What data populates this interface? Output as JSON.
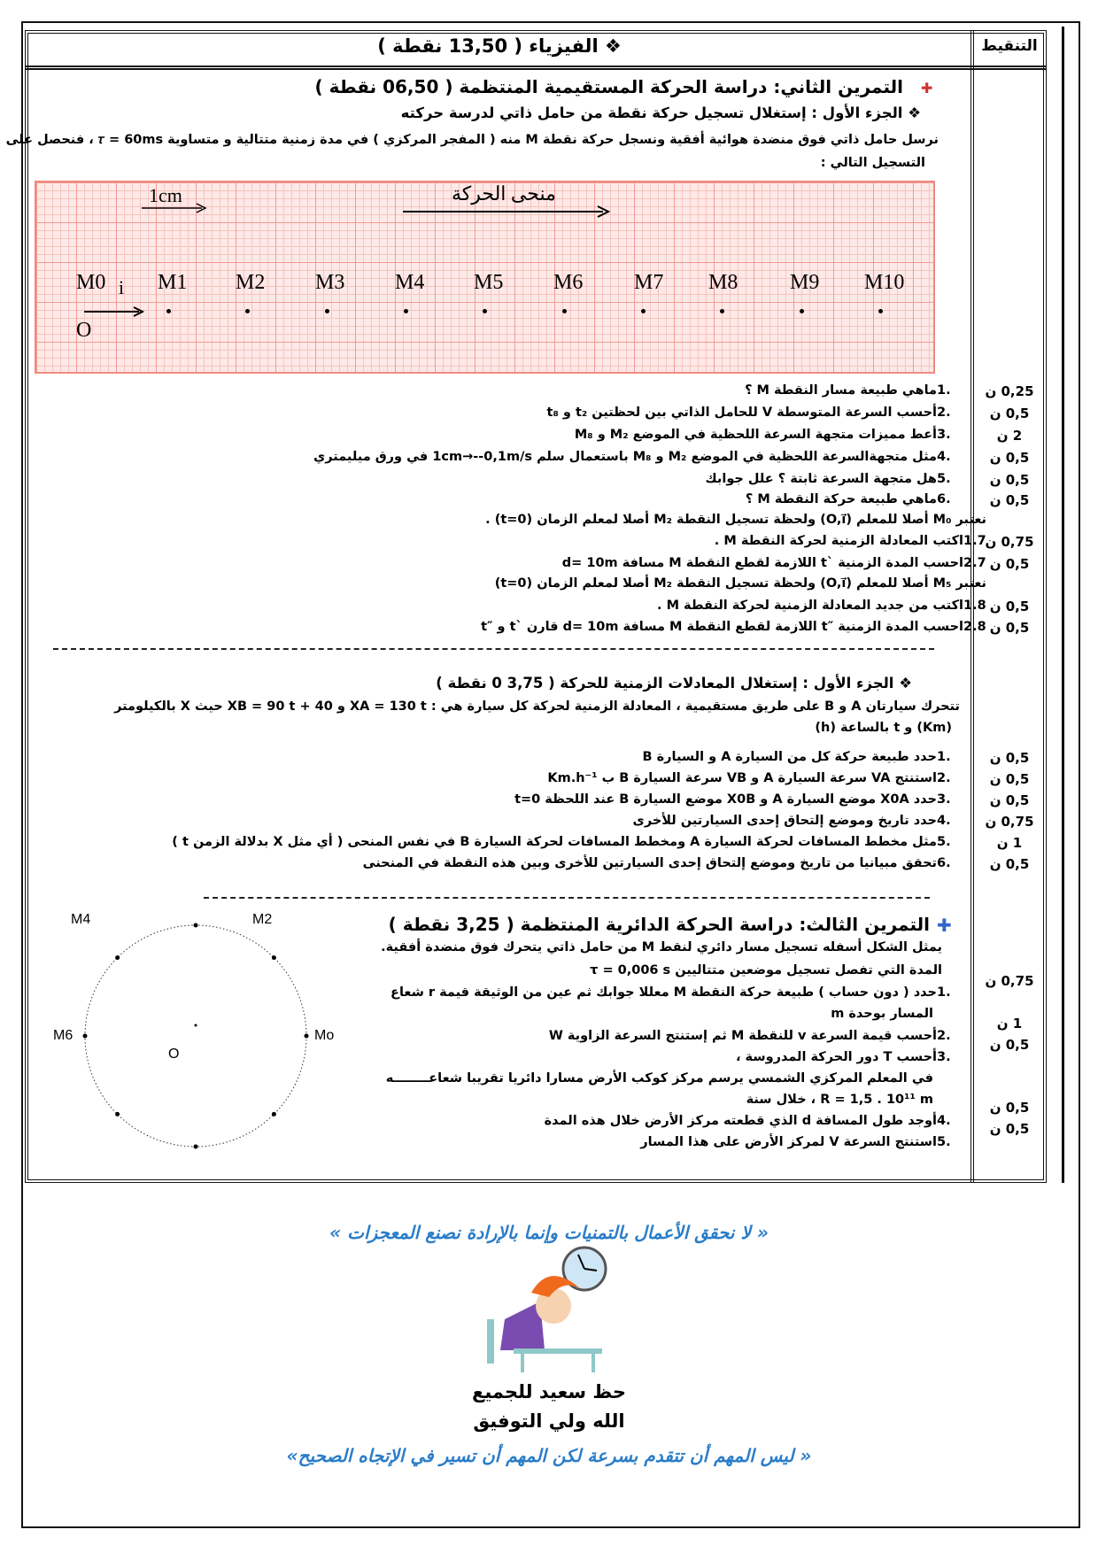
{
  "header": {
    "title": "❖  الفيزياء ( 13,50 نقطة )",
    "score_column": "التنقيط"
  },
  "ex2": {
    "title": "التمرين الثاني: دراسة الحركة المستقيمية المنتظمة  ( 06,50 نقطة )",
    "part1_title": "❖  الجزء الأول : إستغلال تسجيل حركة نقطة من حامل ذاتي لدرسة حركته",
    "intro": [
      "نرسل حامل ذاتي فوق منضدة هوائية أفقية ونسجل حركة نقطة M منه ( المفجر المركزي )  في مدة زمنية متتالية و متساوية 𝜏 = 60ms ، فنحصل على",
      "التسجيل التالي :"
    ],
    "recording": {
      "scale_label": "1cm",
      "trajectory_label": "منحى الحركة",
      "origin_label": "O",
      "unit_vector_label": "i",
      "points": [
        "M0",
        "M1",
        "M2",
        "M3",
        "M4",
        "M5",
        "M6",
        "M7",
        "M8",
        "M9",
        "M10"
      ],
      "grid_color": "#f29a92"
    },
    "lines": [
      {
        "num": "1.",
        "text": "ماهي  طبيعة مسار النقطة M ؟",
        "score": "0,25 ن"
      },
      {
        "num": "2.",
        "text": "أحسب السرعة المتوسطة V للحامل الذاتي بين لحظتين  t₂   و   t₈",
        "score": "0,5 ن"
      },
      {
        "num": "3.",
        "text": "أعط مميزات متجهة السرعة اللحظية  في الموضع M₂ و M₈",
        "score": "2 ن"
      },
      {
        "num": "4.",
        "text": "مثل متجهةالسرعة اللحظية في الموضع M₂ و M₈  باستعمال سلم 1cm→--0,1m/s  في ورق ميليمتري",
        "score": "0,5 ن"
      },
      {
        "num": "5.",
        "text": "هل متجهة السرعة ثابتة ؟ علل جوابك",
        "score": "0,5 ن"
      },
      {
        "num": "6.",
        "text": "ماهي طبيعة حركة النقطة M ؟",
        "score": "0,5 ن"
      },
      {
        "num": "",
        "text": "نعتبر M₀ أصلا للمعلم  (O,i⃗) ولحظة تسجيل النقطة M₂ أصلا لمعلم الزمان (t=0) .",
        "score": ""
      },
      {
        "num": "1.7",
        "text": "اكتب المعادلة الزمنية لحركة النقطة M .",
        "score": "0,75 ن"
      },
      {
        "num": "2.7",
        "text": "احسب المدة الزمنية  `t  اللازمة لقطع النقطة M مسافة  d=  10m",
        "score": "0,5 ن"
      },
      {
        "num": "",
        "text": "نعتبر M₅ أصلا للمعلم  (O,i⃗) ولحظة تسجيل النقطة M₂ أصلا لمعلم الزمان (t=0)",
        "score": ""
      },
      {
        "num": "1.8",
        "text": "اكتب  من جديد المعادلة الزمنية لحركة النقطة M .",
        "score": "0,5 ن"
      },
      {
        "num": "2.8",
        "text": "احسب المدة الزمنية  ″t  اللازمة لقطع النقطة M مسافة  d=  10m  قارن  `t و  ″t",
        "score": "0,5 ن"
      }
    ]
  },
  "part2": {
    "title": "❖  الجزء الأول : إستغلال المعادلات الزمنية للحركة  ( 3,75 0 نقطة )",
    "intro": [
      "تتحرك سيارتان A و B  على طريق مستقيمية ، المعادلة الزمنية لحركة كل سيارة هي  :    XA = 130 t   و     XB = 90 t + 40   حيث  X بالكيلومتر",
      "(Km) و t بالساعة   (h)"
    ],
    "lines": [
      {
        "num": "1.",
        "text": "حدد طبيعة حركة كل من السيارة A و السيارة B",
        "score": "0,5 ن"
      },
      {
        "num": "2.",
        "text": "استنتج  VA  سرعة السيارة A و  VB سرعة السيارة B ب Km.h⁻¹",
        "score": "0,5 ن"
      },
      {
        "num": "3.",
        "text": "حدد   X0A   موضع  السيارة A و  X0B  موضع  السيارة  B عند اللحظة t=0",
        "score": "0,5 ن"
      },
      {
        "num": "4.",
        "text": "حدد تاريخ وموضع إلتحاق إحدى السيارتين للأخرى",
        "score": "0,75 ن"
      },
      {
        "num": "5.",
        "text": "مثل مخطط المسافات لحركة السيارة A ومخطط المسافات لحركة السيارة B  في نفس المنحى ( أي  مثل X بدلالة الزمن   t  )",
        "score": "1 ن"
      },
      {
        "num": "6.",
        "text": "تحقق مبيانيا من تاريخ وموضع إلتحاق إحدى السيارتين للأخرى وبين هذه النقطة في المنحنى",
        "score": "0,5 ن"
      }
    ]
  },
  "ex3": {
    "title": "التمرين الثالث: دراسة الحركة الدائرية المنتظمة (   3,25 نقطة )",
    "circle_labels": {
      "m4": "M4",
      "m2": "M2",
      "m6": "M6",
      "m0": "Mo",
      "center": "O"
    },
    "lines": [
      {
        "num": "",
        "text": "يمثل الشكل أسفله تسجيل مسار دائري لنقط M من حامل ذاتي يتحرك فوق منضدة أفقية.",
        "score": ""
      },
      {
        "num": "",
        "text": "المدة التي تفصل تسجيل موضعين متتاليين  τ  = 0,006 s",
        "score": "0,75 ن"
      },
      {
        "num": "1.",
        "text": "حدد ( دون حساب ) طبيعة حركة النقطة M معللا جوابك ثم عين من الوثيقة قيمة r شعاع",
        "score": ""
      },
      {
        "num": "",
        "text": "المسار بوحدة m",
        "score": "1 ن"
      },
      {
        "num": "2.",
        "text": "أحسب قيمة السرعة v للنقطة M  ثم إستنتج السرعة الزاوية W",
        "score": "0,5 ن"
      },
      {
        "num": "3.",
        "text": "أحسب  T دور الحركة المدروسة ،",
        "score": ""
      },
      {
        "num": "",
        "text": "في المعلم المركزي الشمسي يرسم مركز كوكب الأرض مسارا دائريا تقريبا شعاعــــــــه",
        "score": ""
      },
      {
        "num": "",
        "text": "R = 1,5 . 10¹¹ m ، خلال سنة",
        "score": "0,5 ن"
      },
      {
        "num": "4.",
        "text": "أوجد طول المسافة d الذي قطعته مركز الأرض خلال هذه المدة",
        "score": "0,5 ن"
      },
      {
        "num": "5.",
        "text": "استنتج السرعة V لمركز الأرض على هذا المسار",
        "score": ""
      }
    ]
  },
  "footer": {
    "quote1": "« لا نحقق الأعمال بالتمنيات وإنما بالإرادة نصنع المعجزات »",
    "wish": "حظ سعيد للجميع",
    "blessing": "الله ولي التوفيق",
    "quote2": "« ليس المهم أن تتقدم بسرعة لكن المهم أن تسير في الإتجاه الصحيح»",
    "quote_color": "#2a7dc8"
  }
}
